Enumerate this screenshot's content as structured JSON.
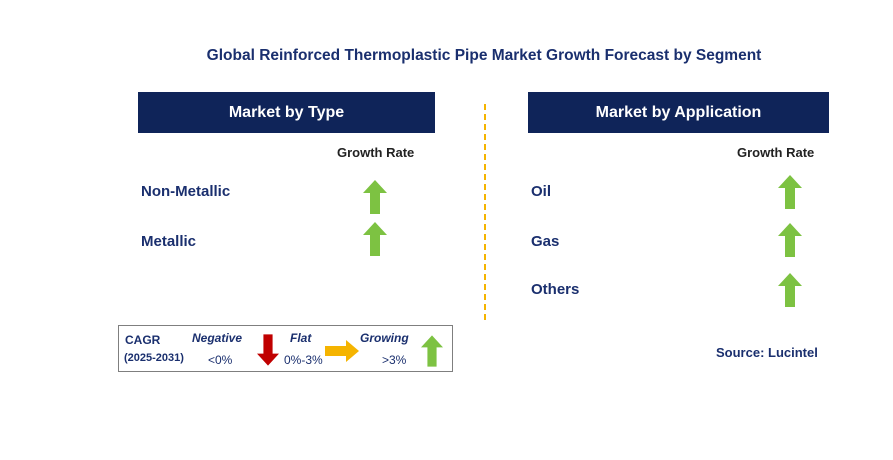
{
  "title": "Global Reinforced Thermoplastic Pipe Market Growth Forecast by Segment",
  "left_panel": {
    "header": "Market by Type",
    "growth_label": "Growth Rate",
    "rows": [
      {
        "label": "Non-Metallic",
        "trend": "growing"
      },
      {
        "label": "Metallic",
        "trend": "growing"
      }
    ]
  },
  "right_panel": {
    "header": "Market by Application",
    "growth_label": "Growth Rate",
    "rows": [
      {
        "label": "Oil",
        "trend": "growing"
      },
      {
        "label": "Gas",
        "trend": "growing"
      },
      {
        "label": "Others",
        "trend": "growing"
      }
    ]
  },
  "legend": {
    "cagr": "CAGR",
    "period": "(2025-2031)",
    "negative_label": "Negative",
    "negative_range": "<0%",
    "flat_label": "Flat",
    "flat_range": "0%-3%",
    "growing_label": "Growing",
    "growing_range": ">3%"
  },
  "source": "Source: Lucintel",
  "colors": {
    "header_bg": "#0f2459",
    "title": "#1a2f6e",
    "growing": "#7dc242",
    "negative": "#c00000",
    "flat": "#f5b400",
    "divider": "#f5b400"
  }
}
